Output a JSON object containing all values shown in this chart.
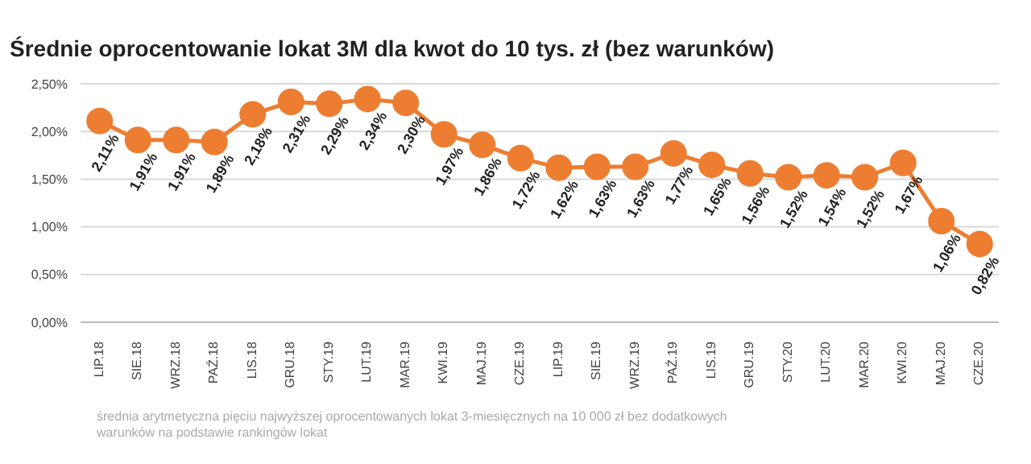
{
  "chart_data": {
    "type": "line",
    "title": "Średnie oprocentowanie lokat 3M dla kwot do 10 tys. zł (bez warunków)",
    "categories": [
      "LIP.18",
      "SIE.18",
      "WRZ.18",
      "PAŹ.18",
      "LIS.18",
      "GRU.18",
      "STY.19",
      "LUT.19",
      "MAR.19",
      "KWI.19",
      "MAJ.19",
      "CZE.19",
      "LIP.19",
      "SIE.19",
      "WRZ.19",
      "PAŹ.19",
      "LIS.19",
      "GRU.19",
      "STY.20",
      "LUT.20",
      "MAR.20",
      "KWI.20",
      "MAJ.20",
      "CZE.20"
    ],
    "values": [
      2.11,
      1.91,
      1.91,
      1.89,
      2.18,
      2.31,
      2.29,
      2.34,
      2.3,
      1.97,
      1.86,
      1.72,
      1.62,
      1.63,
      1.63,
      1.77,
      1.65,
      1.56,
      1.52,
      1.54,
      1.52,
      1.67,
      1.06,
      0.82
    ],
    "value_labels": [
      "2,11%",
      "1,91%",
      "1,91%",
      "1,89%",
      "2,18%",
      "2,31%",
      "2,29%",
      "2,34%",
      "2,30%",
      "1,97%",
      "1,86%",
      "1,72%",
      "1,62%",
      "1,63%",
      "1,63%",
      "1,77%",
      "1,65%",
      "1,56%",
      "1,52%",
      "1,54%",
      "1,52%",
      "1,67%",
      "1,06%",
      "0,82%"
    ],
    "color": "#ed7d31",
    "ylim": [
      0,
      2.5
    ],
    "yticks": [
      {
        "value": 0,
        "label": "0,00%"
      },
      {
        "value": 0.5,
        "label": "0,50%"
      },
      {
        "value": 1,
        "label": "1,00%"
      },
      {
        "value": 1.5,
        "label": "1,50%"
      },
      {
        "value": 2,
        "label": "2,00%"
      },
      {
        "value": 2.5,
        "label": "2,50%"
      }
    ],
    "grid": "y",
    "marker": "circle",
    "line_style": "solid",
    "annotations": [
      "średnia arytmetyczna pięciu najwyższej oprocentowanych lokat 3-miesięcznych na 10 000 zł bez dodatkowych warunków na podstawie rankingów lokat"
    ]
  }
}
